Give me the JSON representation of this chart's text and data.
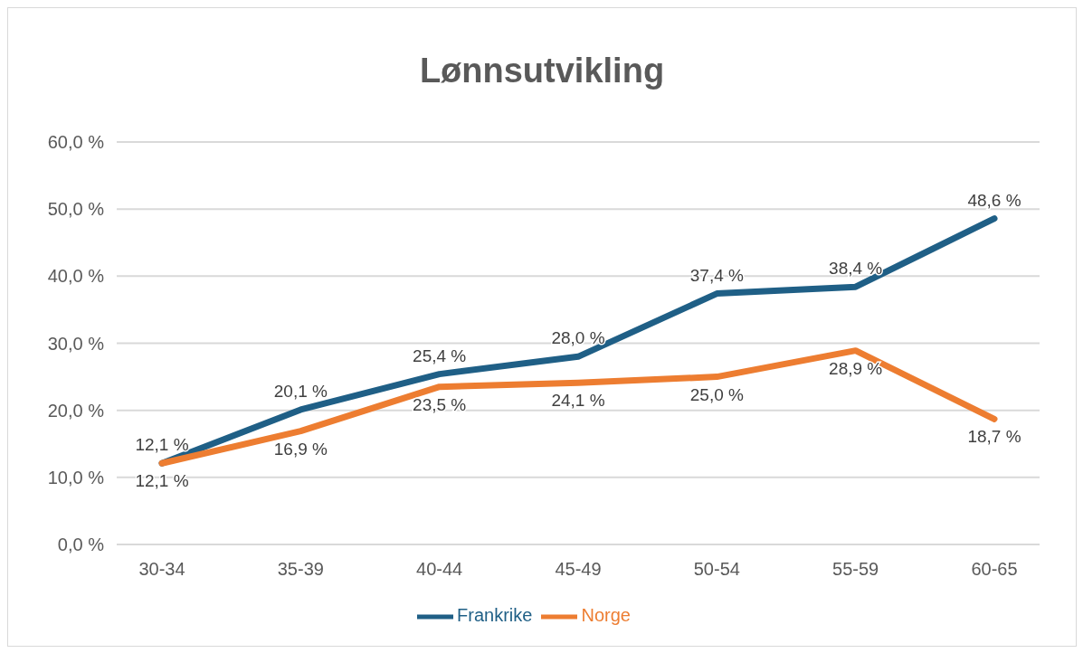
{
  "chart_data": {
    "type": "line",
    "title": "Lønnsutvikling",
    "categories": [
      "30-34",
      "35-39",
      "40-44",
      "45-49",
      "50-54",
      "55-59",
      "60-65"
    ],
    "series": [
      {
        "name": "Frankrike",
        "color": "#1f5f86",
        "values": [
          12.1,
          20.1,
          25.4,
          28.0,
          37.4,
          38.4,
          48.6
        ],
        "value_labels": [
          "12,1 %",
          "20,1 %",
          "25,4 %",
          "28,0 %",
          "37,4 %",
          "38,4 %",
          "48,6 %"
        ]
      },
      {
        "name": "Norge",
        "color": "#ed7d31",
        "values": [
          12.1,
          16.9,
          23.5,
          24.1,
          25.0,
          28.9,
          18.7
        ],
        "value_labels": [
          "12,1 %",
          "16,9 %",
          "23,5 %",
          "24,1 %",
          "25,0 %",
          "28,9 %",
          "18,7 %"
        ]
      }
    ],
    "ylim": [
      0,
      60
    ],
    "yticks": [
      {
        "value": 0,
        "label": "0,0 %"
      },
      {
        "value": 10,
        "label": "10,0 %"
      },
      {
        "value": 20,
        "label": "20,0 %"
      },
      {
        "value": 30,
        "label": "30,0 %"
      },
      {
        "value": 40,
        "label": "40,0 %"
      },
      {
        "value": 50,
        "label": "50,0 %"
      },
      {
        "value": 60,
        "label": "60,0 %"
      }
    ],
    "grid": "y",
    "legend": "bottom",
    "marker": "none",
    "line_style": "solid"
  }
}
